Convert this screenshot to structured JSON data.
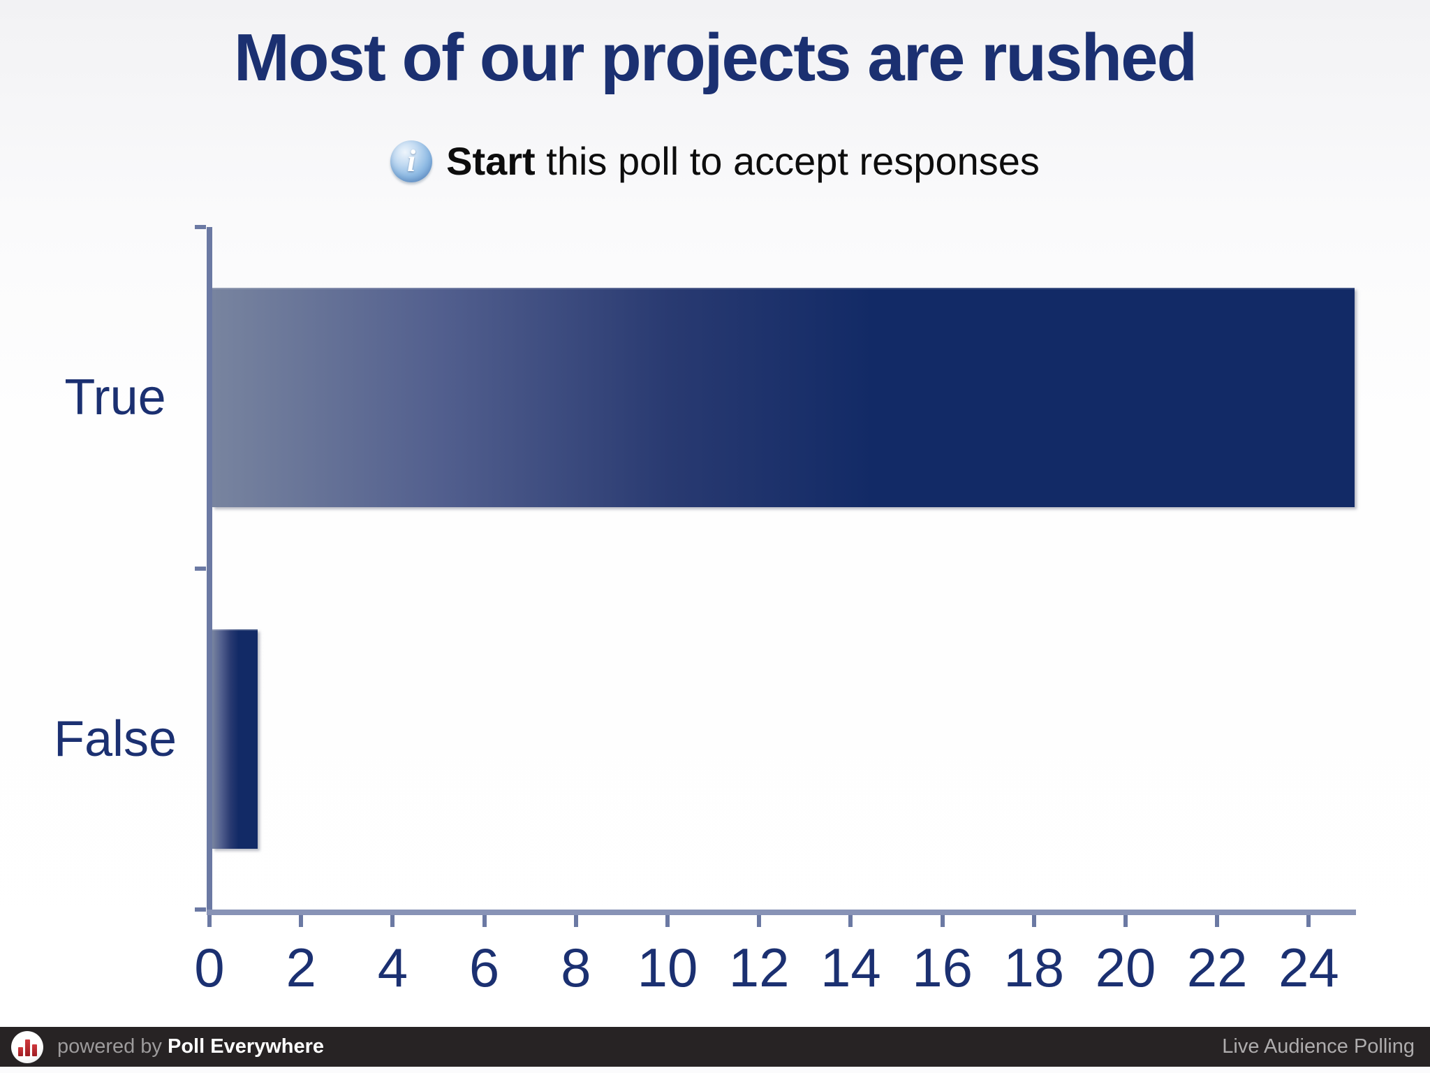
{
  "header": {
    "title": "Most of our projects are rushed"
  },
  "status": {
    "icon": "info-icon",
    "icon_glyph": "i",
    "action_word": "Start",
    "message": " this poll to accept responses"
  },
  "chart_data": {
    "type": "bar",
    "orientation": "horizontal",
    "title": "Most of our projects are rushed",
    "categories": [
      "True",
      "False"
    ],
    "values": [
      25,
      1
    ],
    "xlabel": "",
    "ylabel": "",
    "xlim": [
      0,
      25
    ],
    "xticks": [
      0,
      2,
      4,
      6,
      8,
      10,
      12,
      14,
      16,
      18,
      20,
      22,
      24
    ],
    "grid": false,
    "legend": "none",
    "bar_gradient_start": "#78849f",
    "bar_gradient_end": "#122a66",
    "axis_color": "#6b79a3",
    "label_color": "#1b3071"
  },
  "footer": {
    "logo_icon": "bar-chart-logo",
    "powered_prefix": "powered by ",
    "brand": "Poll Everywhere",
    "right_text": "Live Audience Polling",
    "background": "#272324"
  }
}
